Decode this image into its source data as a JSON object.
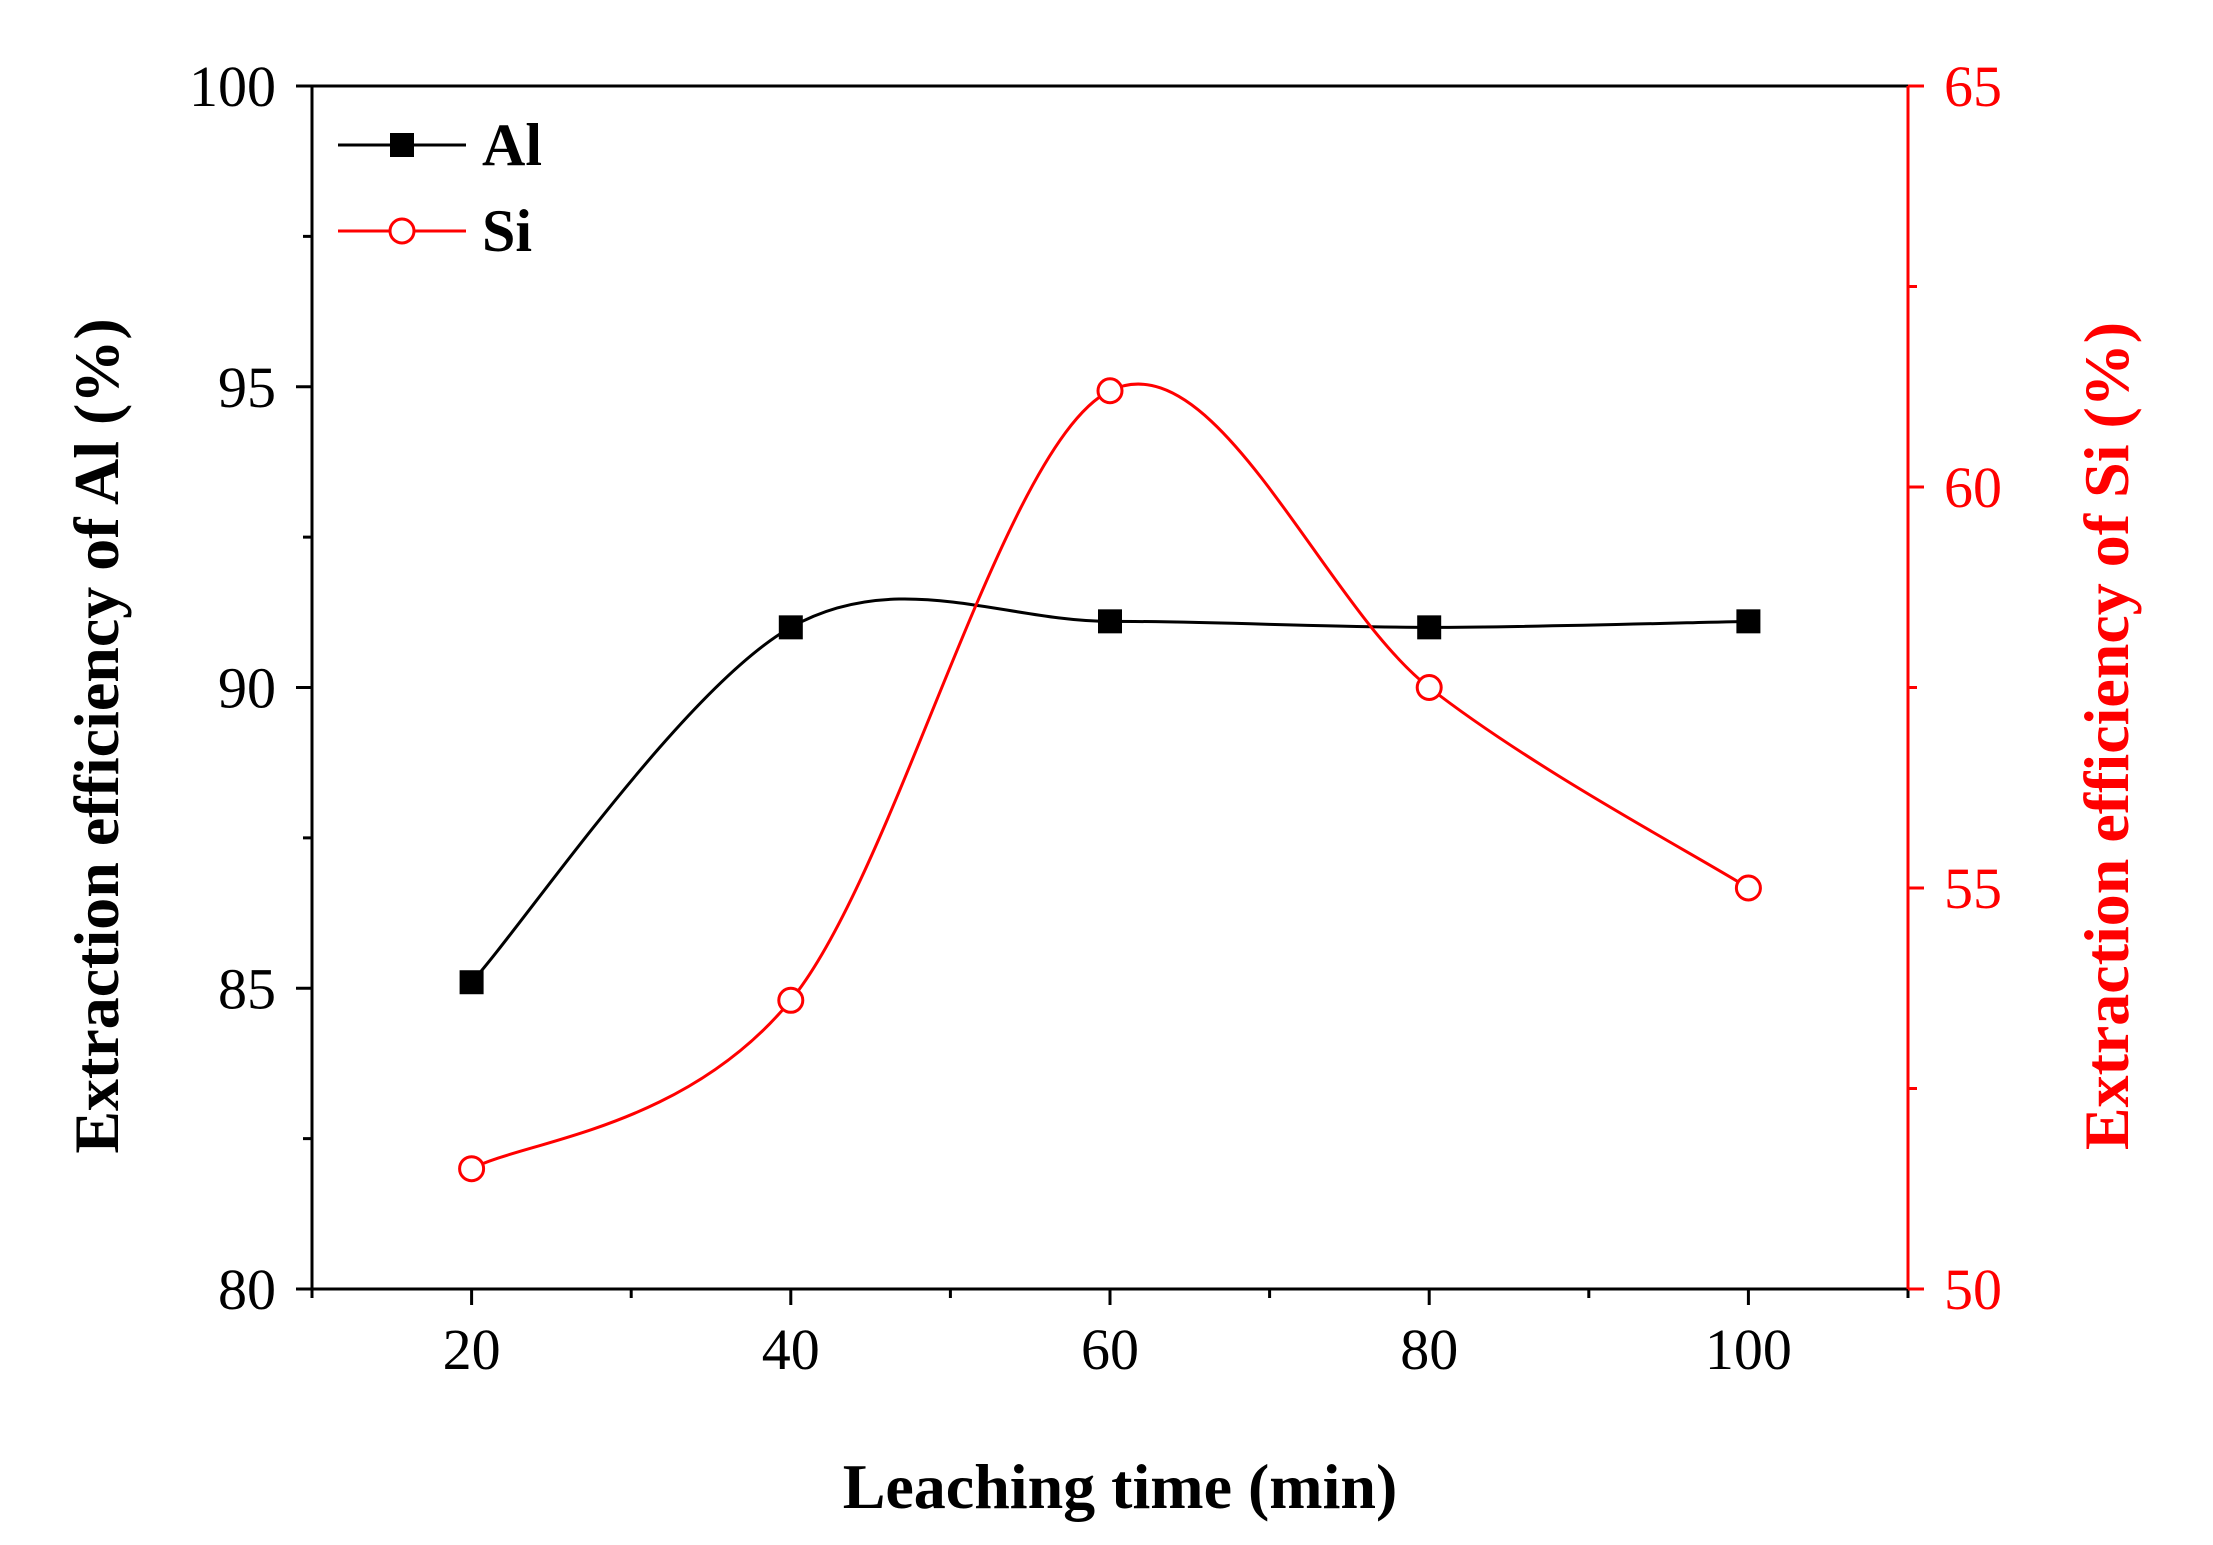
{
  "chart_data": {
    "type": "line",
    "title": "",
    "xlabel": "Leaching time (min)",
    "ylabel": "Extraction efficiency of Al (%)",
    "y2label": "Extraction efficiency of Si (%)",
    "x": [
      20,
      40,
      60,
      80,
      100
    ],
    "xlim": [
      10,
      110
    ],
    "ylim": [
      80,
      100
    ],
    "y2lim": [
      50,
      65
    ],
    "x_ticks": [
      20,
      40,
      60,
      80,
      100
    ],
    "y_ticks": [
      80,
      85,
      90,
      95,
      100
    ],
    "y2_ticks": [
      50,
      55,
      60,
      65
    ],
    "grid": false,
    "legend_position": "top-left",
    "series": [
      {
        "name": "Al",
        "axis": "left",
        "color": "#000000",
        "marker": "filled-square",
        "values": [
          85.1,
          91.0,
          91.1,
          91.0,
          91.1
        ]
      },
      {
        "name": "Si",
        "axis": "right",
        "color": "#ff0000",
        "marker": "open-circle",
        "values": [
          51.5,
          53.6,
          61.2,
          57.5,
          55.0
        ]
      }
    ]
  }
}
